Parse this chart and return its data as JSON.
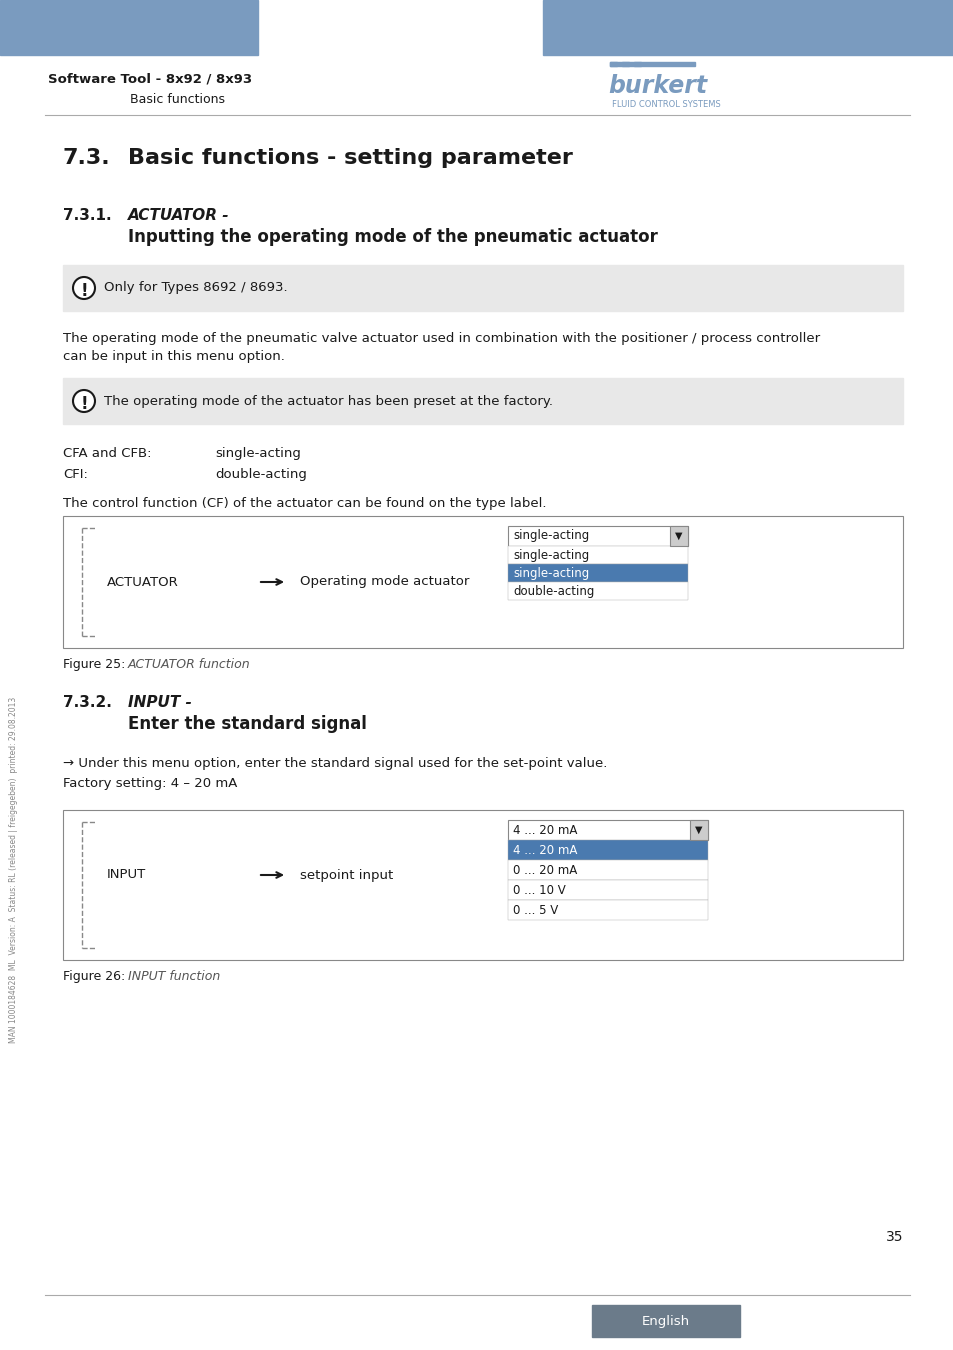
{
  "header_blue": "#7A9BBF",
  "page_bg": "#FFFFFF",
  "logo_color": "#7A9BBF",
  "note_bg": "#E8E8E8",
  "note1_text": "Only for Types 8692 / 8693.",
  "para1_line1": "The operating mode of the pneumatic valve actuator used in combination with the positioner / process controller",
  "para1_line2": "can be input in this menu option.",
  "note2_text": "The operating mode of the actuator has been preset at the factory.",
  "cfa_label": "CFA and CFB:",
  "cfa_value": "single-acting",
  "cfi_label": "CFI:",
  "cfi_value": "double-acting",
  "cf_text": "The control function (CF) of the actuator can be found on the type label.",
  "fig1_label": "ACTUATOR",
  "fig1_middle": "Operating mode actuator",
  "fig1_dropdown_items": [
    "single-acting",
    "single-acting",
    "double-acting"
  ],
  "fig1_caption_num": "Figure 25:",
  "fig1_caption_text": "ACTUATOR function",
  "arrow_text": "→ Under this menu option, enter the standard signal used for the set-point value.",
  "factory_text": "Factory setting: 4 – 20 mA",
  "fig2_label": "INPUT",
  "fig2_middle": "setpoint input",
  "fig2_dropdown_header": "4 ... 20 mA",
  "fig2_dropdown_items": [
    "4 ... 20 mA",
    "0 ... 20 mA",
    "0 ... 10 V",
    "0 ... 5 V"
  ],
  "fig2_caption_num": "Figure 26:",
  "fig2_caption_text": "INPUT function",
  "footer_line_color": "#AAAAAA",
  "footer_bg": "#6B7B8A",
  "footer_text": "English",
  "page_number": "35",
  "left_margin_text": "MAN 1000184628  ML  Version: A  Status: RL (released | freigegeben)  printed: 29.08.2013",
  "software_tool_text": "Software Tool - 8x92 / 8x93",
  "basic_functions_text": "Basic functions",
  "burkert_text": "burkert",
  "fluid_text": "FLUID CONTROL SYSTEMS",
  "text_color": "#1A1A1A",
  "icon_color": "#1A1A1A",
  "dropdown_selected_bg": "#4A7AAF",
  "dropdown_border": "#888888",
  "separator_color": "#AAAAAA"
}
